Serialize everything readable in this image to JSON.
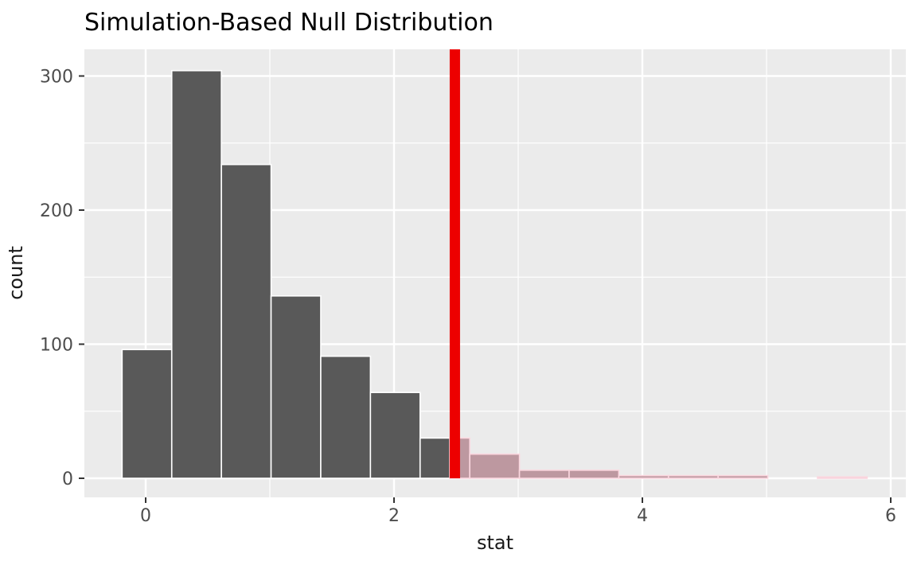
{
  "chart_data": {
    "type": "bar",
    "subtype": "histogram",
    "title": "Simulation-Based Null Distribution",
    "xlabel": "stat",
    "ylabel": "count",
    "bin_start": -0.19,
    "bin_width": 0.4,
    "counts": [
      96,
      304,
      234,
      136,
      91,
      64,
      30,
      18,
      6,
      6,
      2,
      2,
      2,
      0,
      1
    ],
    "observed_stat": 2.49,
    "shade_direction": "greater",
    "x_ticks": [
      0,
      2,
      4,
      6
    ],
    "y_ticks": [
      0,
      100,
      200,
      300
    ],
    "x_minor_ticks": [
      1,
      3,
      5
    ],
    "y_minor_ticks": [
      50,
      150,
      250
    ],
    "xlim": [
      -0.49,
      6.12
    ],
    "ylim": [
      -14,
      320
    ],
    "grid": true,
    "legend_position": "none",
    "colors": {
      "bar_fill": "#595959",
      "bar_stroke": "#ffffff",
      "shaded_fill": "#bd98a0",
      "shaded_stroke": "#fbd7df",
      "obs_line": "#ed0000",
      "panel_bg": "#ebebeb",
      "grid": "#ffffff",
      "tick_mark": "#333333",
      "tick_label": "#4d4d4d",
      "title_color": "#000000"
    }
  }
}
